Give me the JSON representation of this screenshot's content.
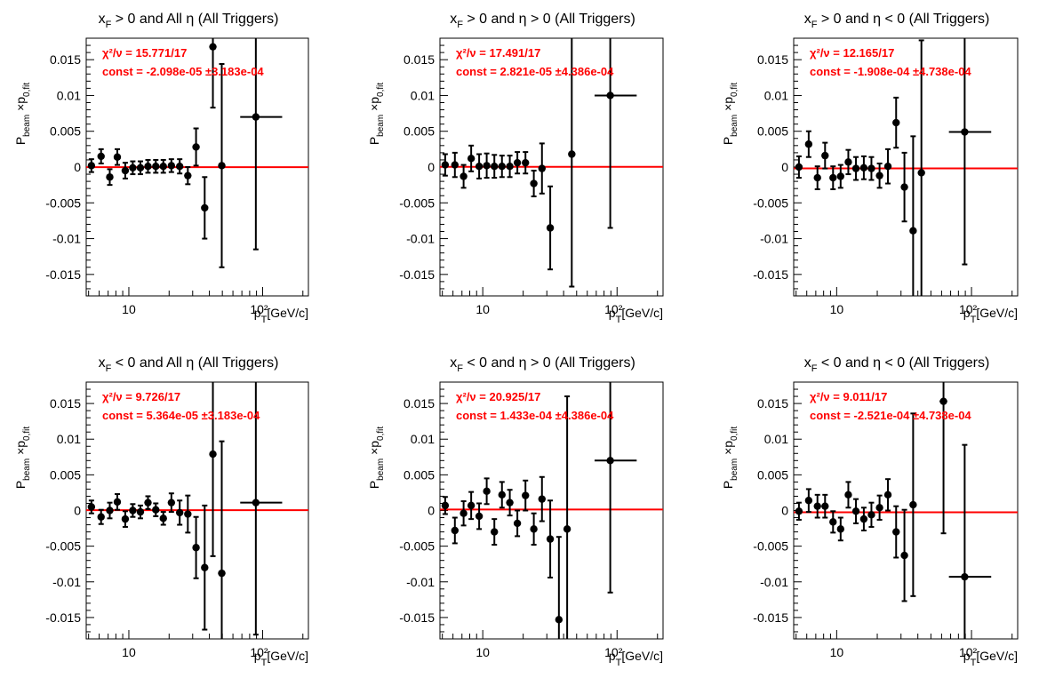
{
  "colors": {
    "fit_line": "#ff0000",
    "markers": "#000000",
    "fit_text": "#ff0000",
    "background": "#ffffff"
  },
  "chart_data": [
    {
      "type": "scatter",
      "title": {
        "base": "x",
        "sub": "F",
        "rest": " > 0 and All η (All Triggers)"
      },
      "ylabel": "P_beam × p_0,fit",
      "xlabel": "p_T [GeV/c]",
      "x_scale": "log",
      "xlim": [
        4.8,
        220
      ],
      "ylim": [
        -0.018,
        0.018
      ],
      "yticks": [
        "0.015",
        "0.01",
        "0.005",
        "0",
        "-0.005",
        "-0.01",
        "-0.015"
      ],
      "xtick_labels": [
        "10",
        "10²"
      ],
      "chi2_label": "χ²/ν = 15.771/17",
      "const_label": "const = -2.098e-05  ±3.183e-04",
      "fit_const": -2.098e-05,
      "points": [
        {
          "x": 5.25,
          "y": 0.0002,
          "xlo": 5.0,
          "xhi": 5.5,
          "err": 0.0009
        },
        {
          "x": 6.2,
          "y": 0.0015,
          "xlo": 5.9,
          "xhi": 6.5,
          "err": 0.001
        },
        {
          "x": 7.2,
          "y": -0.0014,
          "xlo": 6.9,
          "xhi": 7.6,
          "err": 0.0011
        },
        {
          "x": 8.2,
          "y": 0.0014,
          "xlo": 7.8,
          "xhi": 8.6,
          "err": 0.0011
        },
        {
          "x": 9.4,
          "y": -0.0005,
          "xlo": 9.0,
          "xhi": 9.9,
          "err": 0.0011
        },
        {
          "x": 10.7,
          "y": -0.0001,
          "xlo": 10.2,
          "xhi": 11.2,
          "err": 0.0009
        },
        {
          "x": 12.2,
          "y": -0.0001,
          "xlo": 11.7,
          "xhi": 12.8,
          "err": 0.0009
        },
        {
          "x": 13.9,
          "y": 0.0001,
          "xlo": 13.3,
          "xhi": 14.6,
          "err": 0.0009
        },
        {
          "x": 15.9,
          "y": 0.0001,
          "xlo": 15.2,
          "xhi": 16.6,
          "err": 0.0009
        },
        {
          "x": 18.1,
          "y": 0.0001,
          "xlo": 17.3,
          "xhi": 19.0,
          "err": 0.0009
        },
        {
          "x": 20.8,
          "y": 0.0002,
          "xlo": 19.9,
          "xhi": 21.8,
          "err": 0.0009
        },
        {
          "x": 24.0,
          "y": 0.0001,
          "xlo": 22.9,
          "xhi": 25.1,
          "err": 0.001
        },
        {
          "x": 27.6,
          "y": -0.0012,
          "xlo": 26.4,
          "xhi": 28.9,
          "err": 0.0012
        },
        {
          "x": 31.8,
          "y": 0.0028,
          "xlo": 30.4,
          "xhi": 33.3,
          "err": 0.0026
        },
        {
          "x": 36.9,
          "y": -0.0057,
          "xlo": 35.2,
          "xhi": 38.7,
          "err": 0.0043
        },
        {
          "x": 42.5,
          "y": 0.0168,
          "xlo": 40.5,
          "xhi": 44.6,
          "err": 0.0085
        },
        {
          "x": 49.5,
          "y": 0.0002,
          "xlo": 46.5,
          "xhi": 52.7,
          "err": 0.0142
        },
        {
          "x": 89.0,
          "y": 0.007,
          "xlo": 68.0,
          "xhi": 140.0,
          "err": 0.0185
        }
      ]
    },
    {
      "type": "scatter",
      "title": {
        "base": "x",
        "sub": "F",
        "rest": " > 0 and  η > 0 (All Triggers)"
      },
      "ylabel": "P_beam × p_0,fit",
      "xlabel": "p_T [GeV/c]",
      "x_scale": "log",
      "xlim": [
        4.8,
        220
      ],
      "ylim": [
        -0.018,
        0.018
      ],
      "yticks": [
        "0.015",
        "0.01",
        "0.005",
        "0",
        "-0.005",
        "-0.01",
        "-0.015"
      ],
      "xtick_labels": [
        "10",
        "10²"
      ],
      "chi2_label": "χ²/ν = 17.491/17",
      "const_label": "const = 2.821e-05  ±4.386e-04",
      "fit_const": 2.821e-05,
      "points": [
        {
          "x": 5.25,
          "y": 0.0003,
          "xlo": 5.0,
          "xhi": 5.5,
          "err": 0.0015
        },
        {
          "x": 6.2,
          "y": 0.0003,
          "xlo": 5.9,
          "xhi": 6.5,
          "err": 0.0017
        },
        {
          "x": 7.2,
          "y": -0.0013,
          "xlo": 6.9,
          "xhi": 7.6,
          "err": 0.0016
        },
        {
          "x": 8.2,
          "y": 0.0012,
          "xlo": 7.8,
          "xhi": 8.6,
          "err": 0.0018
        },
        {
          "x": 9.4,
          "y": 0.0001,
          "xlo": 9.0,
          "xhi": 9.9,
          "err": 0.0017
        },
        {
          "x": 10.7,
          "y": 0.0002,
          "xlo": 10.2,
          "xhi": 11.2,
          "err": 0.0017
        },
        {
          "x": 12.2,
          "y": 0.0001,
          "xlo": 11.7,
          "xhi": 12.8,
          "err": 0.0016
        },
        {
          "x": 13.9,
          "y": 0.0001,
          "xlo": 13.3,
          "xhi": 14.6,
          "err": 0.0015
        },
        {
          "x": 15.9,
          "y": 0.0001,
          "xlo": 15.2,
          "xhi": 16.6,
          "err": 0.0015
        },
        {
          "x": 18.1,
          "y": 0.0006,
          "xlo": 17.3,
          "xhi": 19.0,
          "err": 0.0015
        },
        {
          "x": 20.8,
          "y": 0.0006,
          "xlo": 19.9,
          "xhi": 21.8,
          "err": 0.0015
        },
        {
          "x": 24.0,
          "y": -0.0023,
          "xlo": 22.9,
          "xhi": 25.1,
          "err": 0.0018
        },
        {
          "x": 27.6,
          "y": -0.0002,
          "xlo": 26.4,
          "xhi": 28.9,
          "err": 0.0035
        },
        {
          "x": 31.8,
          "y": -0.0085,
          "xlo": 30.4,
          "xhi": 33.3,
          "err": 0.0058
        },
        {
          "x": 46.0,
          "y": 0.0018,
          "xlo": 43.5,
          "xhi": 49.0,
          "err": 0.0185
        },
        {
          "x": 89.0,
          "y": 0.01,
          "xlo": 68.0,
          "xhi": 140.0,
          "err": 0.0185
        }
      ]
    },
    {
      "type": "scatter",
      "title": {
        "base": "x",
        "sub": "F",
        "rest": " > 0 and  η < 0 (All Triggers)"
      },
      "ylabel": "P_beam × p_0,fit",
      "xlabel": "p_T [GeV/c]",
      "x_scale": "log",
      "xlim": [
        4.8,
        220
      ],
      "ylim": [
        -0.018,
        0.018
      ],
      "yticks": [
        "0.015",
        "0.01",
        "0.005",
        "0",
        "-0.005",
        "-0.01",
        "-0.015"
      ],
      "xtick_labels": [
        "10",
        "10²"
      ],
      "chi2_label": "χ²/ν = 12.165/17",
      "const_label": "const = -1.908e-04  ±4.738e-04",
      "fit_const": -0.0001908,
      "points": [
        {
          "x": 5.25,
          "y": 0.0,
          "xlo": 5.0,
          "xhi": 5.5,
          "err": 0.0015
        },
        {
          "x": 6.2,
          "y": 0.0032,
          "xlo": 5.9,
          "xhi": 6.5,
          "err": 0.0018
        },
        {
          "x": 7.2,
          "y": -0.0015,
          "xlo": 6.9,
          "xhi": 7.6,
          "err": 0.0016
        },
        {
          "x": 8.2,
          "y": 0.0016,
          "xlo": 7.8,
          "xhi": 8.6,
          "err": 0.0018
        },
        {
          "x": 9.4,
          "y": -0.0015,
          "xlo": 9.0,
          "xhi": 9.9,
          "err": 0.0016
        },
        {
          "x": 10.7,
          "y": -0.0013,
          "xlo": 10.2,
          "xhi": 11.2,
          "err": 0.0016
        },
        {
          "x": 12.2,
          "y": 0.0007,
          "xlo": 11.7,
          "xhi": 12.8,
          "err": 0.0017
        },
        {
          "x": 13.9,
          "y": -0.0002,
          "xlo": 13.3,
          "xhi": 14.6,
          "err": 0.0016
        },
        {
          "x": 15.9,
          "y": -0.0001,
          "xlo": 15.2,
          "xhi": 16.6,
          "err": 0.0016
        },
        {
          "x": 18.1,
          "y": -0.0002,
          "xlo": 17.3,
          "xhi": 19.0,
          "err": 0.0016
        },
        {
          "x": 20.8,
          "y": -0.0012,
          "xlo": 19.9,
          "xhi": 21.8,
          "err": 0.0017
        },
        {
          "x": 24.0,
          "y": 0.0001,
          "xlo": 22.9,
          "xhi": 25.1,
          "err": 0.0024
        },
        {
          "x": 27.6,
          "y": 0.0062,
          "xlo": 26.4,
          "xhi": 28.9,
          "err": 0.0035
        },
        {
          "x": 31.8,
          "y": -0.0028,
          "xlo": 30.4,
          "xhi": 33.3,
          "err": 0.0048
        },
        {
          "x": 36.9,
          "y": -0.0089,
          "xlo": 35.2,
          "xhi": 38.7,
          "err": 0.0132
        },
        {
          "x": 42.5,
          "y": -0.0008,
          "xlo": 40.5,
          "xhi": 44.6,
          "err": 0.0185
        },
        {
          "x": 89.0,
          "y": 0.0049,
          "xlo": 68.0,
          "xhi": 140.0,
          "err": 0.0185
        }
      ]
    },
    {
      "type": "scatter",
      "title": {
        "base": "x",
        "sub": "F",
        "rest": " < 0 and All η (All Triggers)"
      },
      "ylabel": "P_beam × p_0,fit",
      "xlabel": "p_T [GeV/c]",
      "x_scale": "log",
      "xlim": [
        4.8,
        220
      ],
      "ylim": [
        -0.018,
        0.018
      ],
      "yticks": [
        "0.015",
        "0.01",
        "0.005",
        "0",
        "-0.005",
        "-0.01",
        "-0.015"
      ],
      "xtick_labels": [
        "10",
        "10²"
      ],
      "chi2_label": "χ²/ν = 9.726/17",
      "const_label": "const = 5.364e-05  ±3.183e-04",
      "fit_const": 5.364e-05,
      "points": [
        {
          "x": 5.25,
          "y": 0.0005,
          "xlo": 5.0,
          "xhi": 5.5,
          "err": 0.0009
        },
        {
          "x": 6.2,
          "y": -0.0009,
          "xlo": 5.9,
          "xhi": 6.5,
          "err": 0.001
        },
        {
          "x": 7.2,
          "y": 0.0,
          "xlo": 6.9,
          "xhi": 7.6,
          "err": 0.0011
        },
        {
          "x": 8.2,
          "y": 0.0012,
          "xlo": 7.8,
          "xhi": 8.6,
          "err": 0.0011
        },
        {
          "x": 9.4,
          "y": -0.0012,
          "xlo": 9.0,
          "xhi": 9.9,
          "err": 0.0011
        },
        {
          "x": 10.7,
          "y": 0.0,
          "xlo": 10.2,
          "xhi": 11.2,
          "err": 0.0009
        },
        {
          "x": 12.2,
          "y": -0.0002,
          "xlo": 11.7,
          "xhi": 12.8,
          "err": 0.0009
        },
        {
          "x": 13.9,
          "y": 0.0011,
          "xlo": 13.3,
          "xhi": 14.6,
          "err": 0.0009
        },
        {
          "x": 15.9,
          "y": 0.0001,
          "xlo": 15.2,
          "xhi": 16.6,
          "err": 0.0009
        },
        {
          "x": 18.1,
          "y": -0.0011,
          "xlo": 17.3,
          "xhi": 19.0,
          "err": 0.0009
        },
        {
          "x": 20.8,
          "y": 0.0011,
          "xlo": 19.9,
          "xhi": 21.8,
          "err": 0.0013
        },
        {
          "x": 24.0,
          "y": -0.0003,
          "xlo": 22.9,
          "xhi": 25.1,
          "err": 0.0017
        },
        {
          "x": 27.6,
          "y": -0.0005,
          "xlo": 26.4,
          "xhi": 28.9,
          "err": 0.0026
        },
        {
          "x": 31.8,
          "y": -0.0052,
          "xlo": 30.4,
          "xhi": 33.3,
          "err": 0.0043
        },
        {
          "x": 36.9,
          "y": -0.008,
          "xlo": 35.2,
          "xhi": 38.7,
          "err": 0.0087
        },
        {
          "x": 42.5,
          "y": 0.0079,
          "xlo": 40.5,
          "xhi": 44.6,
          "err": 0.0143
        },
        {
          "x": 49.5,
          "y": -0.0088,
          "xlo": 46.5,
          "xhi": 52.7,
          "err": 0.0185
        },
        {
          "x": 89.0,
          "y": 0.0011,
          "xlo": 68.0,
          "xhi": 140.0,
          "err": 0.0185
        }
      ]
    },
    {
      "type": "scatter",
      "title": {
        "base": "x",
        "sub": "F",
        "rest": " < 0 and  η > 0 (All Triggers)"
      },
      "ylabel": "P_beam × p_0,fit",
      "xlabel": "p_T [GeV/c]",
      "x_scale": "log",
      "xlim": [
        4.8,
        220
      ],
      "ylim": [
        -0.018,
        0.018
      ],
      "yticks": [
        "0.015",
        "0.01",
        "0.005",
        "0",
        "-0.005",
        "-0.01",
        "-0.015"
      ],
      "xtick_labels": [
        "10",
        "10²"
      ],
      "chi2_label": "χ²/ν = 20.925/17",
      "const_label": "const = 1.433e-04  ±4.386e-04",
      "fit_const": 0.0001433,
      "points": [
        {
          "x": 5.25,
          "y": 0.0007,
          "xlo": 5.0,
          "xhi": 5.5,
          "err": 0.0012
        },
        {
          "x": 6.2,
          "y": -0.0028,
          "xlo": 5.9,
          "xhi": 6.5,
          "err": 0.0018
        },
        {
          "x": 7.2,
          "y": -0.0004,
          "xlo": 6.9,
          "xhi": 7.6,
          "err": 0.0017
        },
        {
          "x": 8.2,
          "y": 0.0007,
          "xlo": 7.8,
          "xhi": 8.6,
          "err": 0.0019
        },
        {
          "x": 9.4,
          "y": -0.0008,
          "xlo": 9.0,
          "xhi": 9.9,
          "err": 0.0018
        },
        {
          "x": 10.7,
          "y": 0.0027,
          "xlo": 10.2,
          "xhi": 11.2,
          "err": 0.0018
        },
        {
          "x": 12.2,
          "y": -0.003,
          "xlo": 11.7,
          "xhi": 12.8,
          "err": 0.0018
        },
        {
          "x": 13.9,
          "y": 0.0022,
          "xlo": 13.3,
          "xhi": 14.6,
          "err": 0.0018
        },
        {
          "x": 15.9,
          "y": 0.0011,
          "xlo": 15.2,
          "xhi": 16.6,
          "err": 0.0018
        },
        {
          "x": 18.1,
          "y": -0.0018,
          "xlo": 17.3,
          "xhi": 19.0,
          "err": 0.0018
        },
        {
          "x": 20.8,
          "y": 0.0021,
          "xlo": 19.9,
          "xhi": 21.8,
          "err": 0.0021
        },
        {
          "x": 24.0,
          "y": -0.0026,
          "xlo": 22.9,
          "xhi": 25.1,
          "err": 0.0022
        },
        {
          "x": 27.6,
          "y": 0.0016,
          "xlo": 26.4,
          "xhi": 28.9,
          "err": 0.0031
        },
        {
          "x": 31.8,
          "y": -0.004,
          "xlo": 30.4,
          "xhi": 33.3,
          "err": 0.0054
        },
        {
          "x": 36.9,
          "y": -0.0153,
          "xlo": 35.2,
          "xhi": 38.7,
          "err": 0.0116
        },
        {
          "x": 42.5,
          "y": -0.0026,
          "xlo": 40.5,
          "xhi": 44.6,
          "err": 0.0186
        },
        {
          "x": 89.0,
          "y": 0.007,
          "xlo": 68.0,
          "xhi": 140.0,
          "err": 0.0185
        }
      ]
    },
    {
      "type": "scatter",
      "title": {
        "base": "x",
        "sub": "F",
        "rest": " < 0 and  η < 0 (All Triggers)"
      },
      "ylabel": "P_beam × p_0,fit",
      "xlabel": "p_T [GeV/c]",
      "x_scale": "log",
      "xlim": [
        4.8,
        220
      ],
      "ylim": [
        -0.018,
        0.018
      ],
      "yticks": [
        "0.015",
        "0.01",
        "0.005",
        "0",
        "-0.005",
        "-0.01",
        "-0.015"
      ],
      "xtick_labels": [
        "10",
        "10²"
      ],
      "chi2_label": "χ²/ν = 9.011/17",
      "const_label": "const = -2.521e-04  ±4.738e-04",
      "fit_const": -0.0002521,
      "points": [
        {
          "x": 5.25,
          "y": -0.0001,
          "xlo": 5.0,
          "xhi": 5.5,
          "err": 0.0012
        },
        {
          "x": 6.2,
          "y": 0.0014,
          "xlo": 5.9,
          "xhi": 6.5,
          "err": 0.0016
        },
        {
          "x": 7.2,
          "y": 0.0006,
          "xlo": 6.9,
          "xhi": 7.6,
          "err": 0.0016
        },
        {
          "x": 8.2,
          "y": 0.0006,
          "xlo": 7.8,
          "xhi": 8.6,
          "err": 0.0016
        },
        {
          "x": 9.4,
          "y": -0.0016,
          "xlo": 9.0,
          "xhi": 9.9,
          "err": 0.0015
        },
        {
          "x": 10.7,
          "y": -0.0026,
          "xlo": 10.2,
          "xhi": 11.2,
          "err": 0.0016
        },
        {
          "x": 12.2,
          "y": 0.0022,
          "xlo": 11.7,
          "xhi": 12.8,
          "err": 0.0018
        },
        {
          "x": 13.9,
          "y": -0.0001,
          "xlo": 13.3,
          "xhi": 14.6,
          "err": 0.0017
        },
        {
          "x": 15.9,
          "y": -0.0012,
          "xlo": 15.2,
          "xhi": 16.6,
          "err": 0.0016
        },
        {
          "x": 18.1,
          "y": -0.0006,
          "xlo": 17.3,
          "xhi": 19.0,
          "err": 0.0017
        },
        {
          "x": 20.8,
          "y": 0.0004,
          "xlo": 19.9,
          "xhi": 21.8,
          "err": 0.0017
        },
        {
          "x": 24.0,
          "y": 0.0022,
          "xlo": 22.9,
          "xhi": 25.1,
          "err": 0.0022
        },
        {
          "x": 27.6,
          "y": -0.003,
          "xlo": 26.4,
          "xhi": 28.9,
          "err": 0.0036
        },
        {
          "x": 31.8,
          "y": -0.0063,
          "xlo": 30.4,
          "xhi": 33.3,
          "err": 0.0064
        },
        {
          "x": 36.9,
          "y": 0.0008,
          "xlo": 35.2,
          "xhi": 38.7,
          "err": 0.0128
        },
        {
          "x": 62.0,
          "y": 0.0153,
          "xlo": 58.0,
          "xhi": 66.0,
          "err": 0.0185
        },
        {
          "x": 89.0,
          "y": -0.0093,
          "xlo": 68.0,
          "xhi": 140.0,
          "err": 0.0185
        }
      ]
    }
  ]
}
